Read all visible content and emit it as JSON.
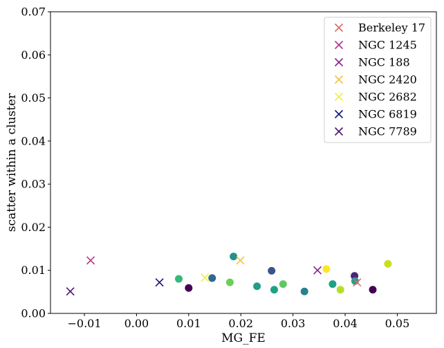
{
  "chart_data": {
    "type": "scatter",
    "xlabel": "MG_FE",
    "ylabel": "scatter within a cluster",
    "xlim": [
      -0.0165,
      0.0575
    ],
    "ylim": [
      0.0,
      0.07
    ],
    "xticks": [
      -0.01,
      0.0,
      0.01,
      0.02,
      0.03,
      0.04,
      0.05
    ],
    "xtick_labels": [
      "−0.01",
      "0.00",
      "0.01",
      "0.02",
      "0.03",
      "0.04",
      "0.05"
    ],
    "yticks": [
      0.0,
      0.01,
      0.02,
      0.03,
      0.04,
      0.05,
      0.06,
      0.07
    ],
    "ytick_labels": [
      "0.00",
      "0.01",
      "0.02",
      "0.03",
      "0.04",
      "0.05",
      "0.06",
      "0.07"
    ],
    "grid": false,
    "legend_position": "top-right",
    "series": [
      {
        "name": "Berkeley 17",
        "marker": "x",
        "color": "#e06666",
        "points": [
          [
            0.0423,
            0.0072
          ]
        ]
      },
      {
        "name": "NGC 1245",
        "marker": "x",
        "color": "#b5338a",
        "points": [
          [
            -0.0088,
            0.0123
          ]
        ]
      },
      {
        "name": "NGC 188",
        "marker": "x",
        "color": "#8a2090",
        "points": [
          [
            0.0347,
            0.01
          ]
        ]
      },
      {
        "name": "NGC 2420",
        "marker": "x",
        "color": "#f5c242",
        "points": [
          [
            0.0199,
            0.0123
          ]
        ]
      },
      {
        "name": "NGC 2682",
        "marker": "x",
        "color": "#eaf048",
        "points": [
          [
            0.0131,
            0.0083
          ]
        ]
      },
      {
        "name": "NGC 6819",
        "marker": "x",
        "color": "#14147a",
        "points": [
          [
            0.0044,
            0.0072
          ]
        ]
      },
      {
        "name": "NGC 7789",
        "marker": "x",
        "color": "#4a1470",
        "points": [
          [
            -0.0127,
            0.0051
          ]
        ]
      }
    ],
    "extra_points": [
      {
        "marker": "o",
        "color": "#35b779",
        "x": 0.0081,
        "y": 0.008
      },
      {
        "marker": "o",
        "color": "#440154",
        "x": 0.01,
        "y": 0.0059
      },
      {
        "marker": "o",
        "color": "#31688e",
        "x": 0.0145,
        "y": 0.0082
      },
      {
        "marker": "o",
        "color": "#6ece58",
        "x": 0.0179,
        "y": 0.0072
      },
      {
        "marker": "o",
        "color": "#21918c",
        "x": 0.0186,
        "y": 0.0132
      },
      {
        "marker": "o",
        "color": "#1f9e89",
        "x": 0.0231,
        "y": 0.0063
      },
      {
        "marker": "o",
        "color": "#3b528b",
        "x": 0.0259,
        "y": 0.0099
      },
      {
        "marker": "o",
        "color": "#1fa187",
        "x": 0.0264,
        "y": 0.0055
      },
      {
        "marker": "o",
        "color": "#5ec962",
        "x": 0.0281,
        "y": 0.0068
      },
      {
        "marker": "o",
        "color": "#26828e",
        "x": 0.0322,
        "y": 0.0051
      },
      {
        "marker": "o",
        "color": "#fde725",
        "x": 0.0364,
        "y": 0.0103
      },
      {
        "marker": "o",
        "color": "#1fa187",
        "x": 0.0376,
        "y": 0.0068
      },
      {
        "marker": "o",
        "color": "#b5de2b",
        "x": 0.0391,
        "y": 0.0055
      },
      {
        "marker": "o",
        "color": "#482878",
        "x": 0.0418,
        "y": 0.0087
      },
      {
        "marker": "o",
        "color": "#2a9d8f",
        "x": 0.0419,
        "y": 0.0075
      },
      {
        "marker": "o",
        "color": "#440154",
        "x": 0.0453,
        "y": 0.0055
      },
      {
        "marker": "o",
        "color": "#c8e020",
        "x": 0.0482,
        "y": 0.0115
      }
    ]
  }
}
